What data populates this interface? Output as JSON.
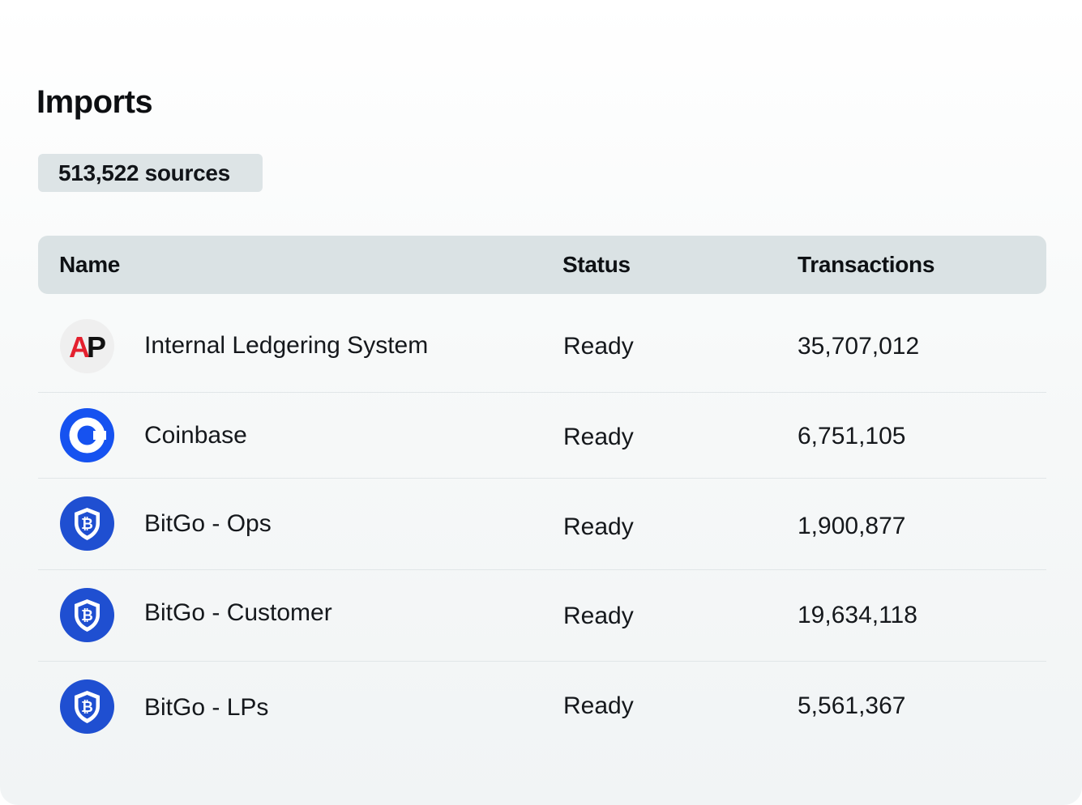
{
  "page": {
    "title": "Imports",
    "sources_badge": "513,522 sources"
  },
  "table": {
    "columns": {
      "name": "Name",
      "status": "Status",
      "transactions": "Transactions"
    },
    "rows": [
      {
        "icon": "ap-logo-icon",
        "name": "Internal Ledgering System",
        "status": "Ready",
        "transactions": "35,707,012"
      },
      {
        "icon": "coinbase-logo-icon",
        "name": "Coinbase",
        "status": "Ready",
        "transactions": "6,751,105"
      },
      {
        "icon": "bitgo-logo-icon",
        "name": "BitGo - Ops",
        "status": "Ready",
        "transactions": "1,900,877"
      },
      {
        "icon": "bitgo-logo-icon",
        "name": "BitGo - Customer",
        "status": "Ready",
        "transactions": "19,634,118"
      },
      {
        "icon": "bitgo-logo-icon",
        "name": "BitGo - LPs",
        "status": "Ready",
        "transactions": "5,561,367"
      }
    ]
  },
  "logos": {
    "ap_text": "AP"
  },
  "colors": {
    "ap_red": "#e4202e",
    "ap_bg": "#efefef",
    "coinbase_blue": "#1652f0",
    "bitgo_blue": "#1f4fd1",
    "header_bg": "#dae2e4",
    "badge_bg": "#dde4e6"
  }
}
